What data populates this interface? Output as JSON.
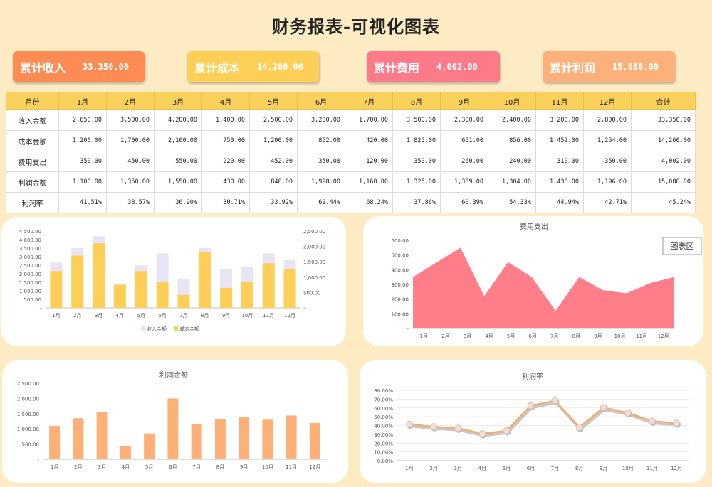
{
  "title": "财务报表-可视化图表",
  "kpis": [
    {
      "label": "累计收入",
      "value": "33,350.00",
      "color": "#fd8b54"
    },
    {
      "label": "累计成本",
      "value": "14,260.00",
      "color": "#fdcf57"
    },
    {
      "label": "累计费用",
      "value": "4,002.00",
      "color": "#fd7b88"
    },
    {
      "label": "累计利润",
      "value": "15,088.00",
      "color": "#fdb17a"
    }
  ],
  "table": {
    "headers": [
      "月份",
      "1月",
      "2月",
      "3月",
      "4月",
      "5月",
      "6月",
      "7月",
      "8月",
      "9月",
      "10月",
      "11月",
      "12月",
      "合计"
    ],
    "rows": [
      {
        "label": "收入金额",
        "cells": [
          "2,650.00",
          "3,500.00",
          "4,200.00",
          "1,400.00",
          "2,500.00",
          "3,200.00",
          "1,700.00",
          "3,500.00",
          "2,300.00",
          "2,400.00",
          "3,200.00",
          "2,800.00",
          "33,350.00"
        ]
      },
      {
        "label": "成本金额",
        "cells": [
          "1,200.00",
          "1,700.00",
          "2,100.00",
          "750.00",
          "1,200.00",
          "852.00",
          "420.00",
          "1,825.00",
          "651.00",
          "856.00",
          "1,452.00",
          "1,254.00",
          "14,260.00"
        ]
      },
      {
        "label": "费用支出",
        "cells": [
          "350.00",
          "450.00",
          "550.00",
          "220.00",
          "452.00",
          "350.00",
          "120.00",
          "350.00",
          "260.00",
          "240.00",
          "310.00",
          "350.00",
          "4,002.00"
        ]
      },
      {
        "label": "利润金额",
        "cells": [
          "1,100.00",
          "1,350.00",
          "1,550.00",
          "430.00",
          "848.00",
          "1,998.00",
          "1,160.00",
          "1,325.00",
          "1,389.00",
          "1,304.00",
          "1,438.00",
          "1,196.00",
          "15,088.00"
        ]
      },
      {
        "label": "利润率",
        "cells": [
          "41.51%",
          "38.57%",
          "36.90%",
          "30.71%",
          "33.92%",
          "62.44%",
          "68.24%",
          "37.86%",
          "60.39%",
          "54.33%",
          "44.94%",
          "42.71%",
          "45.24%"
        ]
      }
    ]
  },
  "chart_data": [
    {
      "type": "bar",
      "title": "",
      "categories": [
        "1月",
        "2月",
        "3月",
        "4月",
        "5月",
        "6月",
        "7月",
        "8月",
        "9月",
        "10月",
        "11月",
        "12月"
      ],
      "series": [
        {
          "name": "收入金额",
          "axis": "left",
          "color": "#e8e4f3",
          "values": [
            2650,
            3500,
            4200,
            1400,
            2500,
            3200,
            1700,
            3500,
            2300,
            2400,
            3200,
            2800
          ]
        },
        {
          "name": "成本金额",
          "axis": "right",
          "color": "#fdcf57",
          "values": [
            1200,
            1700,
            2100,
            750,
            1200,
            852,
            420,
            1825,
            651,
            856,
            1452,
            1254
          ]
        }
      ],
      "ylim_left": [
        0,
        4500
      ],
      "yticks_left": [
        "-",
        "500.00",
        "1,000.00",
        "1,500.00",
        "2,000.00",
        "2,500.00",
        "3,000.00",
        "3,500.00",
        "4,000.00",
        "4,500.00"
      ],
      "ylim_right": [
        0,
        2500
      ],
      "yticks_right": [
        "-",
        "500.00",
        "1,000.00",
        "1,500.00",
        "2,000.00",
        "2,500.00"
      ],
      "legend": "bottom"
    },
    {
      "type": "area",
      "title": "费用支出",
      "categories": [
        "1月",
        "2月",
        "3月",
        "4月",
        "5月",
        "6月",
        "7月",
        "8月",
        "9月",
        "10月",
        "11月",
        "12月"
      ],
      "values": [
        350,
        450,
        550,
        220,
        452,
        350,
        120,
        350,
        260,
        240,
        310,
        350
      ],
      "color": "#fe7f8a",
      "ylim": [
        0,
        600
      ],
      "yticks": [
        "-",
        "100.00",
        "200.00",
        "300.00",
        "400.00",
        "500.00",
        "600.00"
      ],
      "tooltip": "图表区"
    },
    {
      "type": "bar",
      "title": "利润金额",
      "categories": [
        "1月",
        "2月",
        "3月",
        "4月",
        "5月",
        "6月",
        "7月",
        "8月",
        "9月",
        "10月",
        "11月",
        "12月"
      ],
      "values": [
        1100,
        1350,
        1550,
        430,
        848,
        1998,
        1160,
        1325,
        1389,
        1304,
        1438,
        1196
      ],
      "color": "#fdb178",
      "ylim": [
        0,
        2500
      ],
      "yticks": [
        "-",
        "500.00",
        "1,000.00",
        "1,500.00",
        "2,000.00",
        "2,500.00"
      ]
    },
    {
      "type": "line",
      "title": "利润率",
      "categories": [
        "1月",
        "2月",
        "3月",
        "4月",
        "5月",
        "6月",
        "7月",
        "8月",
        "9月",
        "10月",
        "11月",
        "12月"
      ],
      "values": [
        41.51,
        38.57,
        36.9,
        30.71,
        33.92,
        62.44,
        68.24,
        37.86,
        60.39,
        54.33,
        44.94,
        42.71
      ],
      "color": "#f3ad74",
      "ylim": [
        0,
        80
      ],
      "yticks": [
        "0.00%",
        "10.00%",
        "20.00%",
        "30.00%",
        "40.00%",
        "50.00%",
        "60.00%",
        "70.00%",
        "80.00%"
      ]
    }
  ]
}
